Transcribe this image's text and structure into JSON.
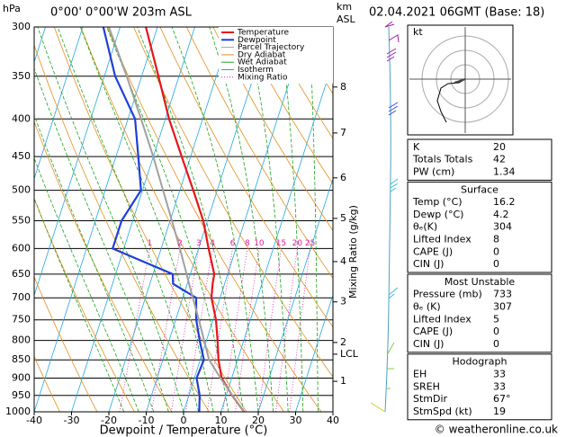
{
  "chart_data": {
    "type": "skewt",
    "y_label": "hPa",
    "location": "0°00' 0°00'W 203m ASL",
    "height_label": [
      "km",
      "ASL"
    ],
    "datetime": "02.04.2021 06GMT (Base: 18)",
    "x_label": "Dewpoint / Temperature (°C)",
    "xlim": [
      -40,
      40
    ],
    "xticks": [
      -40,
      -30,
      -20,
      -10,
      0,
      10,
      20,
      30,
      40
    ],
    "ylim": [
      1000,
      300
    ],
    "yticks": [
      300,
      350,
      400,
      450,
      500,
      550,
      600,
      650,
      700,
      750,
      800,
      850,
      900,
      950,
      1000
    ],
    "log_y": true,
    "pressure": [
      1000,
      950,
      900,
      850,
      800,
      750,
      700,
      670,
      650,
      600,
      550,
      500,
      450,
      400,
      350,
      300
    ],
    "series": [
      {
        "name": "Temperature",
        "color": "#e8151b",
        "values": [
          16.2,
          11.6,
          7.3,
          4.9,
          3.0,
          0.8,
          -2.3,
          -3.2,
          -3.6,
          -7.3,
          -11.1,
          -16.4,
          -22.4,
          -29.0,
          -35.5,
          -43.1
        ]
      },
      {
        "name": "Dewpoint",
        "color": "#1f3fd8",
        "values": [
          4.2,
          2.9,
          0.6,
          1.0,
          -1.8,
          -4.5,
          -6.4,
          -13.8,
          -14.7,
          -33.0,
          -33.0,
          -30.4,
          -34.0,
          -38.1,
          -47.1,
          -54.5
        ]
      },
      {
        "name": "Parcel Trajectory",
        "color": "#a0a0a0",
        "values": [
          16.2,
          11.7,
          7.0,
          2.4,
          -0.6,
          -3.8,
          -7.3,
          -9.5,
          -11.0,
          -15.0,
          -19.5,
          -24.5,
          -30.0,
          -36.5,
          -44.0,
          -53.0
        ]
      }
    ],
    "reference_lines": [
      {
        "name": "Dry Adiabat",
        "color": "#e09020"
      },
      {
        "name": "Wet Adiabat",
        "color": "#20a020"
      },
      {
        "name": "Isotherm",
        "color": "#20a8e0"
      },
      {
        "name": "Mixing Ratio",
        "color": "#e020a0"
      }
    ],
    "mixing_ratio_label": "Mixing Ratio (g/kg)",
    "mixing_ratios": [
      1,
      2,
      3,
      4,
      6,
      8,
      10,
      15,
      20,
      25
    ],
    "height_ticks": [
      {
        "value": 909,
        "label": "1"
      },
      {
        "value": 805,
        "label": "2"
      },
      {
        "value": 709,
        "label": "3"
      },
      {
        "value": 625,
        "label": "4"
      },
      {
        "value": 546,
        "label": "5"
      },
      {
        "value": 481,
        "label": "6"
      },
      {
        "value": 418,
        "label": "7"
      },
      {
        "value": 362,
        "label": "8"
      },
      {
        "value": 835,
        "label": "LCL"
      }
    ]
  },
  "hodograph": {
    "unit": "kt"
  },
  "tables": [
    {
      "rows": [
        [
          "K",
          20
        ],
        [
          "Totals Totals",
          42
        ],
        [
          "PW (cm)",
          1.34
        ]
      ]
    },
    {
      "title": "Surface",
      "rows": [
        [
          "Temp (°C)",
          16.2
        ],
        [
          "Dewp (°C)",
          4.2
        ],
        [
          "θₑ(K)",
          304
        ],
        [
          "Lifted Index",
          8
        ],
        [
          "CAPE (J)",
          0
        ],
        [
          "CIN (J)",
          0
        ]
      ]
    },
    {
      "title": "Most Unstable",
      "rows": [
        [
          "Pressure (mb)",
          733
        ],
        [
          "θₑ (K)",
          307
        ],
        [
          "Lifted Index",
          5
        ],
        [
          "CAPE (J)",
          0
        ],
        [
          "CIN (J)",
          0
        ]
      ]
    },
    {
      "title": "Hodograph",
      "rows": [
        [
          "EH",
          33
        ],
        [
          "SREH",
          33
        ],
        [
          "StmDir",
          "67°"
        ],
        [
          "StmSpd (kt)",
          19
        ]
      ]
    }
  ],
  "footer": "© weatheronline.co.uk"
}
